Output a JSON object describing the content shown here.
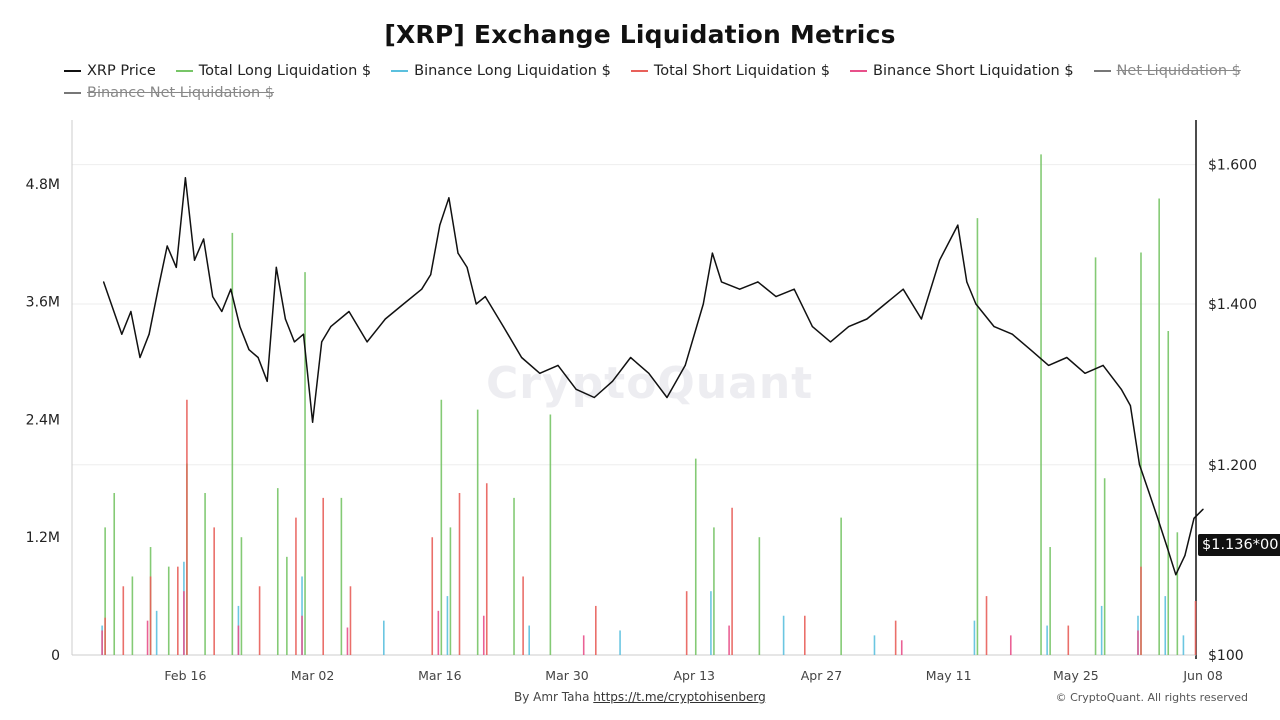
{
  "page": {
    "title": "[XRP] Exchange Liquidation Metrics",
    "byline_prefix": "By Amr Taha",
    "byline_link": "https://t.me/cryptohisenberg",
    "copyright": "© CryptoQuant. All rights reserved",
    "watermark": "CryptoQuant"
  },
  "legend": [
    {
      "label": "XRP Price",
      "color": "#111111",
      "hidden": false
    },
    {
      "label": "Total Long Liquidation $",
      "color": "#77c567",
      "hidden": false
    },
    {
      "label": "Binance Long Liquidation $",
      "color": "#5bc0de",
      "hidden": false
    },
    {
      "label": "Total Short Liquidation $",
      "color": "#e8605a",
      "hidden": false
    },
    {
      "label": "Binance Short Liquidation $",
      "color": "#e8508a",
      "hidden": false
    },
    {
      "label": "Net Liquidation $",
      "color": "#777777",
      "hidden": true
    },
    {
      "label": "Binance Net Liquidation $",
      "color": "#777777",
      "hidden": true
    }
  ],
  "chart_data": {
    "type": "line",
    "title": "[XRP] Exchange Liquidation Metrics",
    "x_ticks": [
      "Feb 16",
      "Mar 02",
      "Mar 16",
      "Mar 30",
      "Apr 13",
      "Apr 27",
      "May 11",
      "May 25",
      "Jun 08"
    ],
    "x_range": [
      "Feb 07",
      "Jun 08"
    ],
    "left_axis": {
      "ticks": [
        "0",
        "1.2M",
        "2.4M",
        "3.6M",
        "4.8M"
      ],
      "tick_values": [
        0,
        1200000,
        2400000,
        3600000,
        4800000
      ]
    },
    "right_axis": {
      "ticks": [
        "$100",
        "$1.200",
        "$1.400",
        "$1.600"
      ],
      "tick_values": [
        1.0,
        1.2,
        1.4,
        1.6
      ],
      "scale": "log"
    },
    "grid": true,
    "legend_position": "top",
    "last_price_label": "$1.136*00",
    "series": [
      {
        "name": "XRP Price",
        "axis": "right",
        "x": [
          "Feb 07",
          "Feb 09",
          "Feb 10",
          "Feb 11",
          "Feb 12",
          "Feb 13",
          "Feb 14",
          "Feb 15",
          "Feb 16",
          "Feb 17",
          "Feb 18",
          "Feb 19",
          "Feb 20",
          "Feb 21",
          "Feb 22",
          "Feb 23",
          "Feb 24",
          "Feb 25",
          "Feb 26",
          "Feb 27",
          "Feb 28",
          "Mar 01",
          "Mar 02",
          "Mar 03",
          "Mar 04",
          "Mar 06",
          "Mar 08",
          "Mar 10",
          "Mar 12",
          "Mar 14",
          "Mar 15",
          "Mar 16",
          "Mar 17",
          "Mar 18",
          "Mar 19",
          "Mar 20",
          "Mar 21",
          "Mar 23",
          "Mar 25",
          "Mar 27",
          "Mar 29",
          "Mar 31",
          "Apr 02",
          "Apr 04",
          "Apr 06",
          "Apr 08",
          "Apr 10",
          "Apr 12",
          "Apr 14",
          "Apr 15",
          "Apr 16",
          "Apr 18",
          "Apr 20",
          "Apr 22",
          "Apr 24",
          "Apr 26",
          "Apr 28",
          "Apr 30",
          "May 02",
          "May 04",
          "May 06",
          "May 08",
          "May 10",
          "May 12",
          "May 13",
          "May 14",
          "May 16",
          "May 18",
          "May 20",
          "May 22",
          "May 24",
          "May 26",
          "May 28",
          "May 30",
          "May 31",
          "Jun 01",
          "Jun 02",
          "Jun 03",
          "Jun 04",
          "Jun 05",
          "Jun 06",
          "Jun 07",
          "Jun 08"
        ],
        "values": [
          1.43,
          1.36,
          1.39,
          1.33,
          1.36,
          1.42,
          1.48,
          1.45,
          1.58,
          1.46,
          1.49,
          1.41,
          1.39,
          1.42,
          1.37,
          1.34,
          1.33,
          1.3,
          1.45,
          1.38,
          1.35,
          1.36,
          1.25,
          1.35,
          1.37,
          1.39,
          1.35,
          1.38,
          1.4,
          1.42,
          1.44,
          1.51,
          1.55,
          1.47,
          1.45,
          1.4,
          1.41,
          1.37,
          1.33,
          1.31,
          1.32,
          1.29,
          1.28,
          1.3,
          1.33,
          1.31,
          1.28,
          1.32,
          1.4,
          1.47,
          1.43,
          1.42,
          1.43,
          1.41,
          1.42,
          1.37,
          1.35,
          1.37,
          1.38,
          1.4,
          1.42,
          1.38,
          1.46,
          1.51,
          1.43,
          1.4,
          1.37,
          1.36,
          1.34,
          1.32,
          1.33,
          1.31,
          1.32,
          1.29,
          1.27,
          1.2,
          1.17,
          1.14,
          1.11,
          1.08,
          1.1,
          1.14,
          1.15
        ]
      },
      {
        "name": "Total Long Liquidation $",
        "axis": "left",
        "x": [
          "Feb 07",
          "Feb 08",
          "Feb 10",
          "Feb 12",
          "Feb 14",
          "Feb 16",
          "Feb 18",
          "Feb 21",
          "Feb 22",
          "Feb 26",
          "Feb 27",
          "Mar 01",
          "Mar 05",
          "Mar 16",
          "Mar 17",
          "Mar 20",
          "Mar 24",
          "Mar 28",
          "Apr 13",
          "Apr 15",
          "Apr 20",
          "Apr 29",
          "May 14",
          "May 21",
          "May 22",
          "May 27",
          "May 28",
          "Jun 01",
          "Jun 03",
          "Jun 04",
          "Jun 05"
        ],
        "values": [
          1300000,
          1650000,
          800000,
          1100000,
          900000,
          1950000,
          1650000,
          4300000,
          1200000,
          1700000,
          1000000,
          3900000,
          1600000,
          2600000,
          1300000,
          2500000,
          1600000,
          2450000,
          2000000,
          1300000,
          1200000,
          1400000,
          4450000,
          5100000,
          1100000,
          4050000,
          1800000,
          4100000,
          4650000,
          3300000,
          1250000
        ]
      },
      {
        "name": "Binance Long Liquidation $",
        "axis": "left",
        "x": [
          "Feb 07",
          "Feb 13",
          "Feb 16",
          "Feb 22",
          "Mar 01",
          "Mar 10",
          "Mar 17",
          "Mar 26",
          "Apr 05",
          "Apr 15",
          "Apr 23",
          "May 03",
          "May 14",
          "May 22",
          "May 28",
          "Jun 01",
          "Jun 04",
          "Jun 06"
        ],
        "values": [
          300000,
          450000,
          950000,
          500000,
          800000,
          350000,
          600000,
          300000,
          250000,
          650000,
          400000,
          200000,
          350000,
          300000,
          500000,
          400000,
          600000,
          200000
        ]
      },
      {
        "name": "Total Short Liquidation $",
        "axis": "left",
        "x": [
          "Feb 07",
          "Feb 09",
          "Feb 12",
          "Feb 15",
          "Feb 16",
          "Feb 19",
          "Feb 24",
          "Feb 28",
          "Mar 03",
          "Mar 06",
          "Mar 15",
          "Mar 18",
          "Mar 21",
          "Mar 25",
          "Apr 02",
          "Apr 12",
          "Apr 17",
          "Apr 25",
          "May 05",
          "May 15",
          "May 24",
          "Jun 01",
          "Jun 07"
        ],
        "values": [
          380000,
          700000,
          800000,
          900000,
          2600000,
          1300000,
          700000,
          1400000,
          1600000,
          700000,
          1200000,
          1650000,
          1750000,
          800000,
          500000,
          650000,
          1500000,
          400000,
          350000,
          600000,
          300000,
          900000,
          550000
        ]
      },
      {
        "name": "Binance Short Liquidation $",
        "axis": "left",
        "x": [
          "Feb 07",
          "Feb 12",
          "Feb 16",
          "Feb 22",
          "Mar 01",
          "Mar 06",
          "Mar 16",
          "Mar 21",
          "Apr 01",
          "Apr 17",
          "May 06",
          "May 18",
          "Jun 01"
        ],
        "values": [
          250000,
          350000,
          650000,
          300000,
          400000,
          280000,
          450000,
          400000,
          200000,
          300000,
          150000,
          200000,
          250000
        ]
      }
    ]
  }
}
